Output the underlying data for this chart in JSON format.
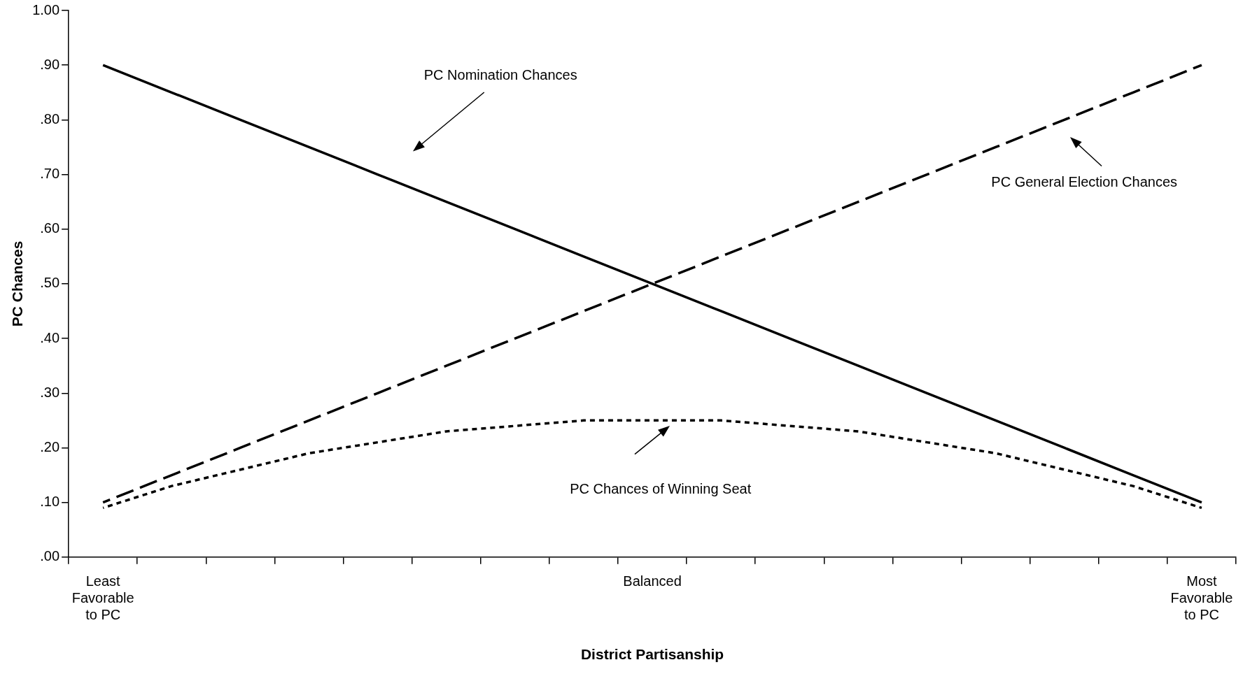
{
  "chart_data": {
    "type": "line",
    "xlabel": "District Partisanship",
    "ylabel": "PC Chances",
    "categories": [
      "Least\nFavorable\nto PC",
      null,
      null,
      null,
      null,
      null,
      null,
      null,
      "Balanced",
      null,
      null,
      null,
      null,
      null,
      null,
      null,
      "Most\nFavorable\nto PC"
    ],
    "series": [
      {
        "color": "#000000",
        "line_style": "solid",
        "values": [
          0.9,
          0.85,
          0.8,
          0.75,
          0.7,
          0.65,
          0.6,
          0.55,
          0.5,
          0.45,
          0.4,
          0.35,
          0.3,
          0.25,
          0.2,
          0.15,
          0.1
        ]
      },
      {
        "color": "#000000",
        "line_style": "dashed",
        "values": [
          0.1,
          0.15,
          0.2,
          0.25,
          0.3,
          0.35,
          0.4,
          0.45,
          0.5,
          0.55,
          0.6,
          0.65,
          0.7,
          0.75,
          0.8,
          0.85,
          0.9
        ]
      },
      {
        "color": "#000000",
        "line_style": "dotted",
        "values": [
          0.09,
          0.13,
          0.16,
          0.19,
          0.21,
          0.23,
          0.24,
          0.25,
          0.25,
          0.25,
          0.24,
          0.23,
          0.21,
          0.19,
          0.16,
          0.13,
          0.09
        ]
      }
    ],
    "ylim": [
      0,
      1
    ],
    "yticks": [
      {
        "value": 0,
        "label": ".00"
      },
      {
        "value": 0.1,
        "label": ".10"
      },
      {
        "value": 0.2,
        "label": ".20"
      },
      {
        "value": 0.3,
        "label": ".30"
      },
      {
        "value": 0.4,
        "label": ".40"
      },
      {
        "value": 0.5,
        "label": ".50"
      },
      {
        "value": 0.6,
        "label": ".60"
      },
      {
        "value": 0.7,
        "label": ".70"
      },
      {
        "value": 0.8,
        "label": ".80"
      },
      {
        "value": 0.9,
        "label": ".90"
      },
      {
        "value": 1,
        "label": "1.00"
      }
    ],
    "annotations": [
      "PC Nomination Chances",
      "PC General Election Chances",
      "PC Chances of Winning Seat"
    ],
    "grid": false,
    "legend": false,
    "marker": "none"
  }
}
